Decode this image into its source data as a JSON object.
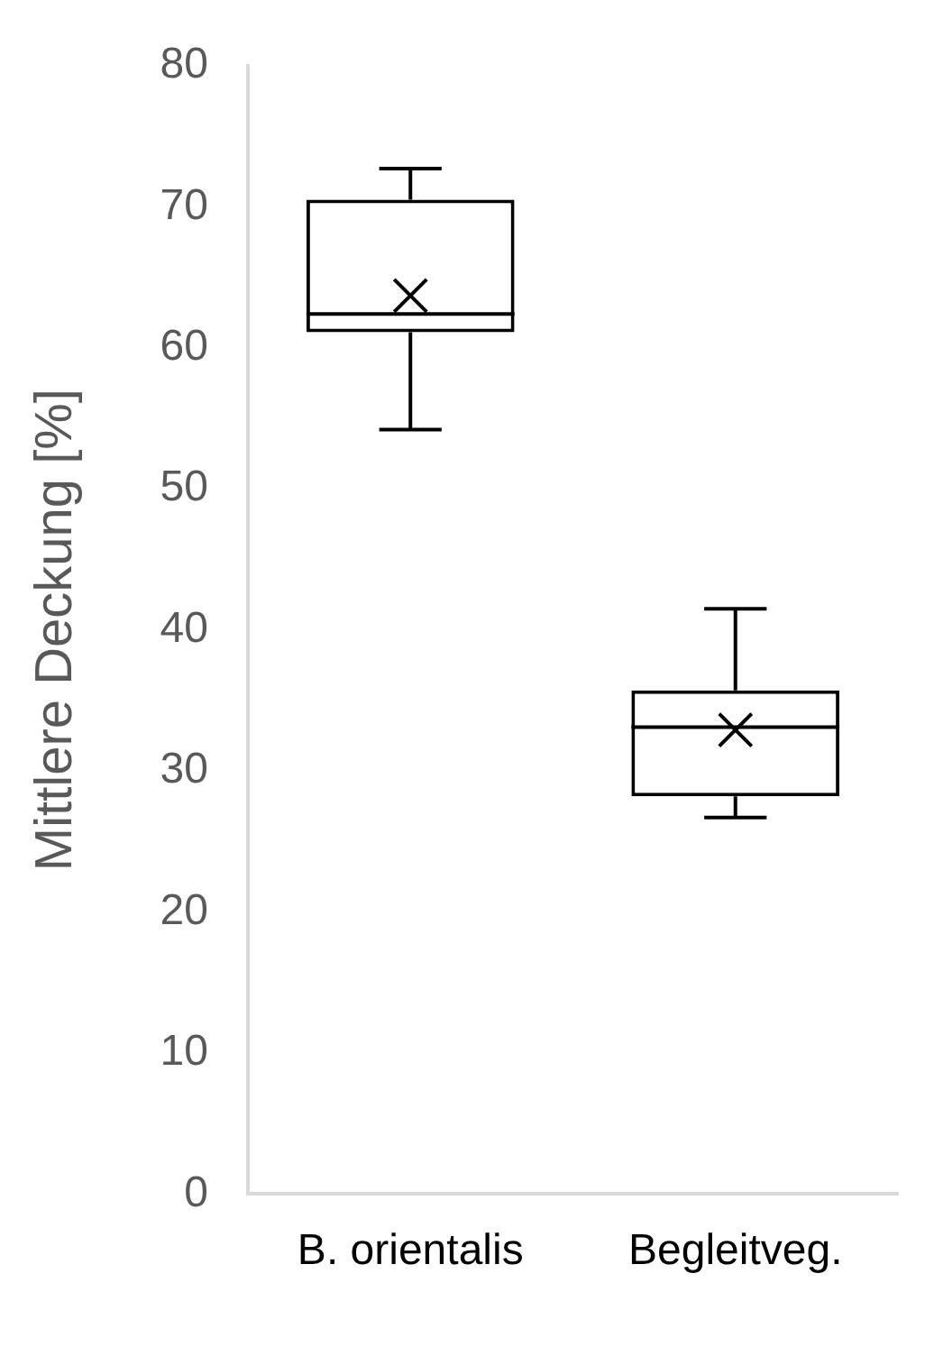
{
  "chart_data": {
    "type": "box",
    "ylabel": "Mittlere Deckung [%]",
    "categories": [
      "B. orientalis",
      "Begleitveg."
    ],
    "boxes": [
      {
        "low": 54.2,
        "q1": 61.1,
        "median": 62.4,
        "q3": 70.5,
        "high": 72.7,
        "mean": 63.7
      },
      {
        "low": 26.7,
        "q1": 28.2,
        "median": 33.1,
        "q3": 35.7,
        "high": 41.5,
        "mean": 32.9
      }
    ],
    "ylim": [
      0,
      80
    ],
    "yticks": [
      0,
      10,
      20,
      30,
      40,
      50,
      60,
      70,
      80
    ],
    "grid": false,
    "legend": false
  }
}
